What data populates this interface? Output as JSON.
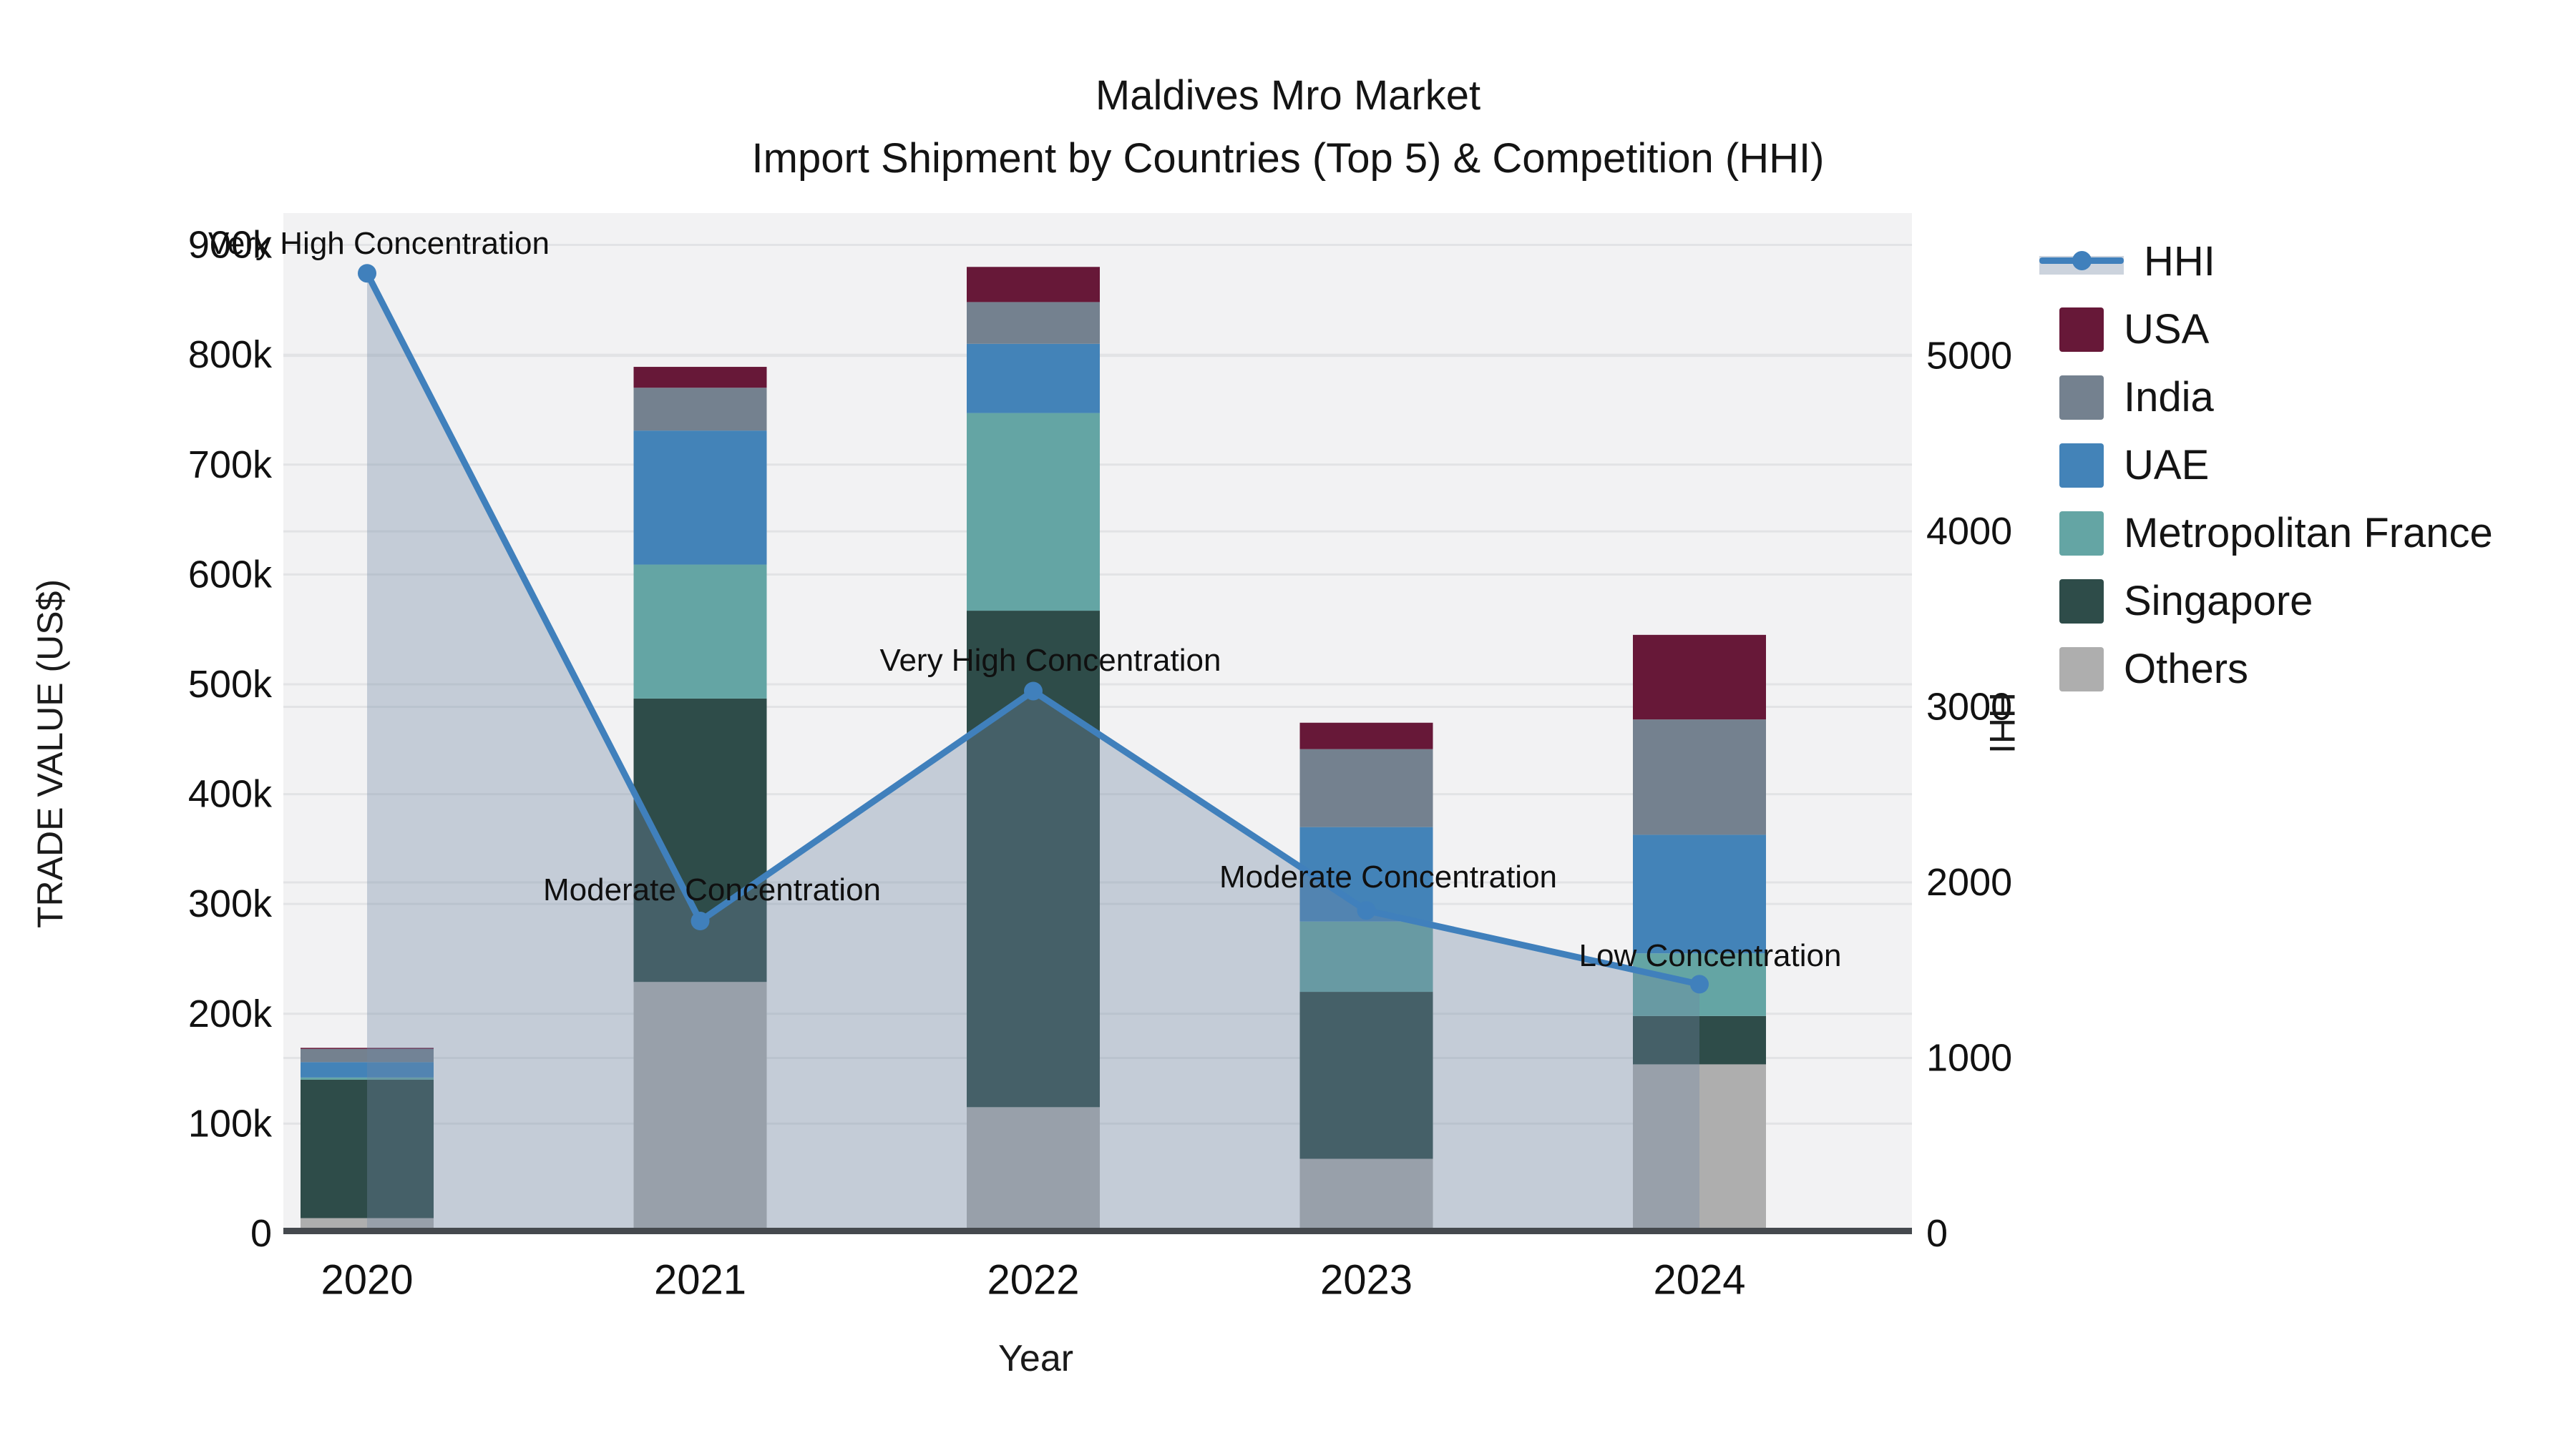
{
  "title": {
    "line1": "Maldives Mro Market",
    "line2": "Import Shipment by Countries (Top 5) & Competition (HHI)"
  },
  "axes": {
    "x_title": "Year",
    "y_left_title": "TRADE VALUE (US$)",
    "y_right_title": "HHI",
    "y_left_tick_labels": [
      "0",
      "100k",
      "200k",
      "300k",
      "400k",
      "500k",
      "600k",
      "700k",
      "800k",
      "900k"
    ],
    "y_right_tick_labels": [
      "0",
      "1000",
      "2000",
      "3000",
      "4000",
      "5000"
    ]
  },
  "chart_data": {
    "type": "bar",
    "subtype": "stacked-bars-with-line-overlay",
    "categories": [
      "2020",
      "2021",
      "2022",
      "2023",
      "2024"
    ],
    "value_unit": "US$ thousands",
    "series": [
      {
        "name": "Others",
        "color": "#aeaeae",
        "values": [
          14,
          229,
          115,
          68,
          154
        ]
      },
      {
        "name": "Singapore",
        "color": "#2e4c49",
        "values": [
          126,
          258,
          452,
          152,
          44
        ]
      },
      {
        "name": "Metropolitan France",
        "color": "#64a5a4",
        "values": [
          2,
          122,
          180,
          64,
          57
        ]
      },
      {
        "name": "UAE",
        "color": "#4383b8",
        "values": [
          14,
          122,
          63,
          86,
          108
        ]
      },
      {
        "name": "India",
        "color": "#74818f",
        "values": [
          12,
          39,
          38,
          71,
          105
        ]
      },
      {
        "name": "USA",
        "color": "#671838",
        "values": [
          1,
          19,
          32,
          24,
          77
        ]
      }
    ],
    "bar_totals_k": [
      169,
      789,
      880,
      465,
      545
    ],
    "line": {
      "name": "HHI",
      "axis": "right",
      "color": "#4080bc",
      "fill_color": "rgba(112,134,162,0.35)",
      "values": [
        5470,
        1780,
        3090,
        1840,
        1420
      ]
    },
    "legend_order": [
      "HHI",
      "USA",
      "India",
      "UAE",
      "Metropolitan France",
      "Singapore",
      "Others"
    ],
    "legend_position": "right",
    "grid": true,
    "y_left_axis": {
      "min": 0,
      "max_k": 929,
      "tick_step_k": 100,
      "tick_max_k": 900
    },
    "y_right_axis": {
      "min": 0,
      "max": 5813,
      "tick_step": 1000,
      "tick_max": 5000
    },
    "annotations": [
      {
        "text": "Very High Concentration",
        "x": 291,
        "y": 341,
        "align": "left"
      },
      {
        "text": "Moderate Concentration",
        "x": 995,
        "y": 1245,
        "align": "center"
      },
      {
        "text": "Very High Concentration",
        "x": 1468,
        "y": 924,
        "align": "center"
      },
      {
        "text": "Moderate Concentration",
        "x": 1940,
        "y": 1227,
        "align": "center"
      },
      {
        "text": "Low Concentration",
        "x": 2390,
        "y": 1337,
        "align": "center"
      }
    ]
  },
  "style": {
    "plot_bg": "#f2f2f3",
    "gridline_color": "#e2e3e5",
    "axis_line_color": "#45494e",
    "tick_text_color": "#111111"
  }
}
